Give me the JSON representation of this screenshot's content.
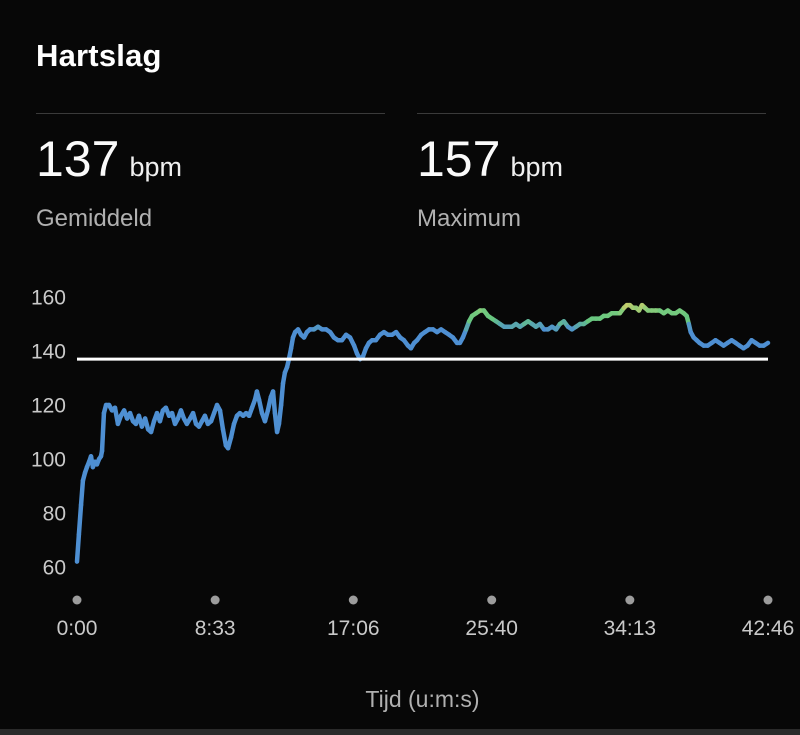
{
  "header": {
    "title": "Hartslag"
  },
  "stats": [
    {
      "value": "137",
      "unit": "bpm",
      "label": "Gemiddeld"
    },
    {
      "value": "157",
      "unit": "bpm",
      "label": "Maximum"
    }
  ],
  "chart_data": {
    "type": "line",
    "title": "Hartslag",
    "xlabel": "Tijd (u:m:s)",
    "ylabel": "bpm",
    "xlim": [
      0,
      2566
    ],
    "ylim": [
      60,
      160
    ],
    "grid": false,
    "y_ticks": [
      160,
      140,
      120,
      100,
      80,
      60
    ],
    "x_ticks": [
      {
        "t": 0,
        "label": "0:00"
      },
      {
        "t": 513,
        "label": "8:33"
      },
      {
        "t": 1026,
        "label": "17:06"
      },
      {
        "t": 1540,
        "label": "25:40"
      },
      {
        "t": 2053,
        "label": "34:13"
      },
      {
        "t": 2566,
        "label": "42:46"
      }
    ],
    "average_line_bpm": 137,
    "colors": {
      "zone_moderate": "#4e8fd2",
      "zone_high": "#74ca7e",
      "zone_peak": "#c3cd6b",
      "average_line": "#ffffff",
      "axis_text": "#c9c9c9",
      "tick_dot": "#9c9c9c"
    },
    "color_stops": [
      [
        148,
        "#4e8fd2"
      ],
      [
        151.5,
        "#67c57f"
      ],
      [
        154.5,
        "#74ca7e"
      ],
      [
        157,
        "#c3cd6b"
      ]
    ],
    "series": [
      {
        "name": "Hartslag",
        "points": [
          [
            0,
            62
          ],
          [
            7,
            72
          ],
          [
            15,
            83
          ],
          [
            22,
            92
          ],
          [
            30,
            95
          ],
          [
            37,
            97
          ],
          [
            45,
            99
          ],
          [
            52,
            101
          ],
          [
            59,
            97
          ],
          [
            67,
            99
          ],
          [
            74,
            98
          ],
          [
            82,
            100
          ],
          [
            89,
            101
          ],
          [
            93,
            103
          ],
          [
            100,
            117
          ],
          [
            108,
            120
          ],
          [
            119,
            120
          ],
          [
            130,
            118
          ],
          [
            141,
            119
          ],
          [
            152,
            113
          ],
          [
            163,
            116
          ],
          [
            175,
            118
          ],
          [
            186,
            115
          ],
          [
            197,
            117
          ],
          [
            208,
            114
          ],
          [
            219,
            113
          ],
          [
            230,
            116
          ],
          [
            241,
            112
          ],
          [
            253,
            115
          ],
          [
            264,
            111
          ],
          [
            275,
            110
          ],
          [
            286,
            114
          ],
          [
            297,
            117
          ],
          [
            308,
            114
          ],
          [
            319,
            118
          ],
          [
            330,
            119
          ],
          [
            342,
            116
          ],
          [
            353,
            117
          ],
          [
            364,
            113
          ],
          [
            375,
            115
          ],
          [
            386,
            118
          ],
          [
            397,
            115
          ],
          [
            408,
            113
          ],
          [
            420,
            115
          ],
          [
            431,
            117
          ],
          [
            442,
            113
          ],
          [
            453,
            112
          ],
          [
            464,
            114
          ],
          [
            475,
            116
          ],
          [
            486,
            113
          ],
          [
            498,
            114
          ],
          [
            509,
            117
          ],
          [
            520,
            120
          ],
          [
            531,
            118
          ],
          [
            542,
            111
          ],
          [
            553,
            105
          ],
          [
            561,
            104
          ],
          [
            572,
            108
          ],
          [
            583,
            113
          ],
          [
            594,
            116
          ],
          [
            605,
            117
          ],
          [
            617,
            116
          ],
          [
            628,
            117
          ],
          [
            639,
            116
          ],
          [
            650,
            119
          ],
          [
            661,
            122
          ],
          [
            668,
            125
          ],
          [
            676,
            122
          ],
          [
            687,
            117
          ],
          [
            698,
            114
          ],
          [
            709,
            118
          ],
          [
            720,
            123
          ],
          [
            728,
            125
          ],
          [
            735,
            117
          ],
          [
            743,
            110
          ],
          [
            750,
            113
          ],
          [
            758,
            120
          ],
          [
            765,
            128
          ],
          [
            772,
            132
          ],
          [
            780,
            134
          ],
          [
            787,
            137
          ],
          [
            795,
            141
          ],
          [
            802,
            145
          ],
          [
            810,
            147
          ],
          [
            821,
            148
          ],
          [
            832,
            146
          ],
          [
            843,
            145
          ],
          [
            854,
            147
          ],
          [
            865,
            148
          ],
          [
            880,
            148
          ],
          [
            895,
            149
          ],
          [
            910,
            148
          ],
          [
            925,
            148
          ],
          [
            940,
            147
          ],
          [
            954,
            145
          ],
          [
            969,
            144
          ],
          [
            984,
            144
          ],
          [
            999,
            146
          ],
          [
            1014,
            145
          ],
          [
            1029,
            142
          ],
          [
            1040,
            139
          ],
          [
            1051,
            137
          ],
          [
            1062,
            138
          ],
          [
            1073,
            141
          ],
          [
            1084,
            143
          ],
          [
            1096,
            144
          ],
          [
            1110,
            144
          ],
          [
            1125,
            146
          ],
          [
            1140,
            147
          ],
          [
            1155,
            146
          ],
          [
            1170,
            146
          ],
          [
            1185,
            147
          ],
          [
            1200,
            145
          ],
          [
            1214,
            144
          ],
          [
            1229,
            142
          ],
          [
            1240,
            141
          ],
          [
            1252,
            143
          ],
          [
            1263,
            144
          ],
          [
            1278,
            146
          ],
          [
            1292,
            147
          ],
          [
            1307,
            148
          ],
          [
            1322,
            148
          ],
          [
            1337,
            147
          ],
          [
            1352,
            148
          ],
          [
            1367,
            147
          ],
          [
            1382,
            146
          ],
          [
            1396,
            145
          ],
          [
            1411,
            143
          ],
          [
            1422,
            143
          ],
          [
            1433,
            145
          ],
          [
            1445,
            148
          ],
          [
            1456,
            151
          ],
          [
            1467,
            153
          ],
          [
            1482,
            154
          ],
          [
            1497,
            155
          ],
          [
            1511,
            155
          ],
          [
            1526,
            153
          ],
          [
            1541,
            152
          ],
          [
            1556,
            151
          ],
          [
            1571,
            150
          ],
          [
            1586,
            149
          ],
          [
            1601,
            149
          ],
          [
            1615,
            149
          ],
          [
            1630,
            150
          ],
          [
            1645,
            149
          ],
          [
            1660,
            150
          ],
          [
            1675,
            151
          ],
          [
            1690,
            150
          ],
          [
            1704,
            149
          ],
          [
            1719,
            150
          ],
          [
            1734,
            148
          ],
          [
            1749,
            148
          ],
          [
            1764,
            149
          ],
          [
            1779,
            148
          ],
          [
            1793,
            150
          ],
          [
            1808,
            151
          ],
          [
            1823,
            149
          ],
          [
            1838,
            148
          ],
          [
            1853,
            149
          ],
          [
            1868,
            150
          ],
          [
            1882,
            150
          ],
          [
            1897,
            151
          ],
          [
            1912,
            152
          ],
          [
            1927,
            152
          ],
          [
            1942,
            152
          ],
          [
            1956,
            153
          ],
          [
            1971,
            153
          ],
          [
            1986,
            154
          ],
          [
            2001,
            154
          ],
          [
            2016,
            154
          ],
          [
            2031,
            156
          ],
          [
            2042,
            157
          ],
          [
            2053,
            157
          ],
          [
            2064,
            156
          ],
          [
            2076,
            156
          ],
          [
            2087,
            155
          ],
          [
            2098,
            157
          ],
          [
            2109,
            156
          ],
          [
            2120,
            155
          ],
          [
            2134,
            155
          ],
          [
            2149,
            155
          ],
          [
            2164,
            155
          ],
          [
            2179,
            154
          ],
          [
            2194,
            155
          ],
          [
            2209,
            154
          ],
          [
            2223,
            154
          ],
          [
            2238,
            155
          ],
          [
            2253,
            154
          ],
          [
            2264,
            153
          ],
          [
            2272,
            150
          ],
          [
            2279,
            147
          ],
          [
            2290,
            145
          ],
          [
            2301,
            144
          ],
          [
            2312,
            143
          ],
          [
            2327,
            142
          ],
          [
            2342,
            142
          ],
          [
            2357,
            143
          ],
          [
            2371,
            144
          ],
          [
            2386,
            143
          ],
          [
            2401,
            142
          ],
          [
            2416,
            143
          ],
          [
            2431,
            144
          ],
          [
            2446,
            143
          ],
          [
            2460,
            142
          ],
          [
            2475,
            141
          ],
          [
            2490,
            142
          ],
          [
            2505,
            144
          ],
          [
            2520,
            143
          ],
          [
            2535,
            142
          ],
          [
            2550,
            142
          ],
          [
            2566,
            143
          ]
        ]
      }
    ]
  }
}
